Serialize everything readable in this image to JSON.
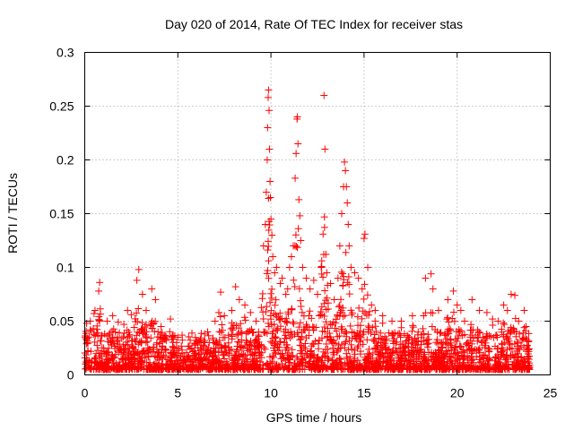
{
  "chart_data": {
    "type": "scatter",
    "title": "Day 020 of 2014, Rate Of TEC Index for receiver stas",
    "xlabel": "GPS time / hours",
    "ylabel": "ROTI / TECUs",
    "xlim": [
      0,
      25
    ],
    "ylim": [
      0,
      0.3
    ],
    "xticks": [
      0,
      5,
      10,
      15,
      20,
      25
    ],
    "yticks": [
      0,
      0.05,
      0.1,
      0.15,
      0.2,
      0.25,
      0.3
    ],
    "xtick_labels": [
      "0",
      "5",
      "10",
      "15",
      "20",
      "25"
    ],
    "ytick_labels": [
      "0",
      "0.05",
      "0.1",
      "0.15",
      "0.2",
      "0.25",
      "0.3"
    ],
    "grid": true,
    "marker": "+",
    "color": "#ff0000",
    "series": [
      {
        "name": "ROTI",
        "baseline_band": [
          0.005,
          0.04
        ],
        "points": [
          [
            0.1,
            0.048
          ],
          [
            0.3,
            0.05
          ],
          [
            0.5,
            0.057
          ],
          [
            0.55,
            0.06
          ],
          [
            0.75,
            0.078
          ],
          [
            0.8,
            0.086
          ],
          [
            1.2,
            0.05
          ],
          [
            1.5,
            0.055
          ],
          [
            1.8,
            0.049
          ],
          [
            2.1,
            0.047
          ],
          [
            2.3,
            0.06
          ],
          [
            2.5,
            0.056
          ],
          [
            2.8,
            0.088
          ],
          [
            2.9,
            0.098
          ],
          [
            3.1,
            0.075
          ],
          [
            3.3,
            0.06
          ],
          [
            3.6,
            0.08
          ],
          [
            3.8,
            0.07
          ],
          [
            4.1,
            0.045
          ],
          [
            4.6,
            0.052
          ],
          [
            5.0,
            0.035
          ],
          [
            6.0,
            0.032
          ],
          [
            6.6,
            0.04
          ],
          [
            7.0,
            0.05
          ],
          [
            7.2,
            0.058
          ],
          [
            7.3,
            0.077
          ],
          [
            7.5,
            0.055
          ],
          [
            7.9,
            0.06
          ],
          [
            8.1,
            0.082
          ],
          [
            8.3,
            0.07
          ],
          [
            8.6,
            0.065
          ],
          [
            8.9,
            0.058
          ],
          [
            9.2,
            0.05
          ],
          [
            9.6,
            0.12
          ],
          [
            9.7,
            0.14
          ],
          [
            9.75,
            0.17
          ],
          [
            9.8,
            0.2
          ],
          [
            9.82,
            0.23
          ],
          [
            9.85,
            0.258
          ],
          [
            9.87,
            0.265
          ],
          [
            9.9,
            0.246
          ],
          [
            9.92,
            0.21
          ],
          [
            9.95,
            0.18
          ],
          [
            9.97,
            0.165
          ],
          [
            10.0,
            0.145
          ],
          [
            10.05,
            0.13
          ],
          [
            10.1,
            0.11
          ],
          [
            10.2,
            0.095
          ],
          [
            10.3,
            0.1
          ],
          [
            10.5,
            0.085
          ],
          [
            10.6,
            0.09
          ],
          [
            10.8,
            0.075
          ],
          [
            10.9,
            0.08
          ],
          [
            11.0,
            0.1
          ],
          [
            11.1,
            0.11
          ],
          [
            11.2,
            0.12
          ],
          [
            11.3,
            0.183
          ],
          [
            11.35,
            0.206
          ],
          [
            11.4,
            0.238
          ],
          [
            11.42,
            0.24
          ],
          [
            11.45,
            0.215
          ],
          [
            11.5,
            0.163
          ],
          [
            11.55,
            0.148
          ],
          [
            11.6,
            0.125
          ],
          [
            11.7,
            0.1
          ],
          [
            11.9,
            0.09
          ],
          [
            12.1,
            0.08
          ],
          [
            12.3,
            0.088
          ],
          [
            12.5,
            0.075
          ],
          [
            12.7,
            0.1
          ],
          [
            12.8,
            0.131
          ],
          [
            12.85,
            0.26
          ],
          [
            12.9,
            0.21
          ],
          [
            13.0,
            0.095
          ],
          [
            13.2,
            0.085
          ],
          [
            13.4,
            0.07
          ],
          [
            13.6,
            0.09
          ],
          [
            13.7,
            0.12
          ],
          [
            13.8,
            0.15
          ],
          [
            13.9,
            0.175
          ],
          [
            13.95,
            0.198
          ],
          [
            14.0,
            0.19
          ],
          [
            14.05,
            0.175
          ],
          [
            14.1,
            0.16
          ],
          [
            14.15,
            0.14
          ],
          [
            14.2,
            0.12
          ],
          [
            14.3,
            0.1
          ],
          [
            14.5,
            0.095
          ],
          [
            14.7,
            0.09
          ],
          [
            14.9,
            0.08
          ],
          [
            15.0,
            0.127
          ],
          [
            15.05,
            0.131
          ],
          [
            15.2,
            0.1
          ],
          [
            15.4,
            0.065
          ],
          [
            15.6,
            0.06
          ],
          [
            16.0,
            0.055
          ],
          [
            16.5,
            0.05
          ],
          [
            17.0,
            0.05
          ],
          [
            17.6,
            0.055
          ],
          [
            18.2,
            0.055
          ],
          [
            18.3,
            0.09
          ],
          [
            18.6,
            0.094
          ],
          [
            18.7,
            0.08
          ],
          [
            19.0,
            0.06
          ],
          [
            19.5,
            0.07
          ],
          [
            19.8,
            0.078
          ],
          [
            20.0,
            0.065
          ],
          [
            20.2,
            0.06
          ],
          [
            20.4,
            0.05
          ],
          [
            20.8,
            0.07
          ],
          [
            21.2,
            0.06
          ],
          [
            21.6,
            0.058
          ],
          [
            21.9,
            0.052
          ],
          [
            22.2,
            0.05
          ],
          [
            22.5,
            0.065
          ],
          [
            22.7,
            0.06
          ],
          [
            22.9,
            0.075
          ],
          [
            23.1,
            0.074
          ],
          [
            23.3,
            0.05
          ],
          [
            23.6,
            0.06
          ],
          [
            23.7,
            0.045
          ]
        ]
      }
    ]
  }
}
